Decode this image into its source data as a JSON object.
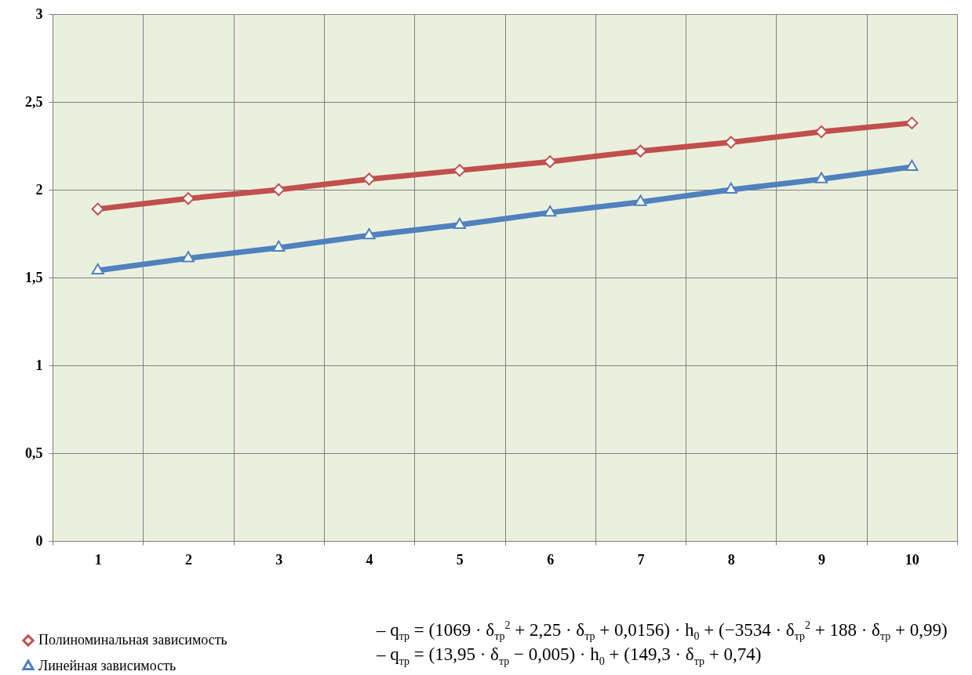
{
  "chart_data": {
    "type": "line",
    "categories": [
      "1",
      "2",
      "3",
      "4",
      "5",
      "6",
      "7",
      "8",
      "9",
      "10"
    ],
    "series": [
      {
        "name": "Полиноминальная зависимость",
        "color": "#c0504d",
        "marker": "diamond",
        "values": [
          1.89,
          1.95,
          2.0,
          2.06,
          2.11,
          2.16,
          2.22,
          2.27,
          2.33,
          2.38
        ]
      },
      {
        "name": "Линейная зависимость",
        "color": "#4f81bd",
        "marker": "triangle",
        "values": [
          1.54,
          1.61,
          1.67,
          1.74,
          1.8,
          1.87,
          1.93,
          2.0,
          2.06,
          2.13
        ]
      }
    ],
    "ylim": [
      0,
      3
    ],
    "yticks": [
      0,
      {
        "value": 0.5,
        "label": "0,5"
      },
      1,
      {
        "value": 1.5,
        "label": "1,5"
      },
      2,
      {
        "value": 2.5,
        "label": "2,5"
      },
      3
    ],
    "grid": true,
    "legend": "bottom left",
    "line_style": "solid",
    "annotations": [
      "–   q$_{тр}$ = (1069 · δ$_{тр}$$^{2}$ + 2,25 · δ$_{тр}$ + 0,0156) · h$_{0}$ + (−3534 · δ$_{тр}$$^{2}$ + 188 · δ$_{тр}$ + 0,99)",
      "–   q$_{тр}$ = (13,95 · δ$_{тр}$ − 0,005) · h$_{0}$ + (149,3 · δ$_{тр}$ + 0,74)"
    ]
  }
}
